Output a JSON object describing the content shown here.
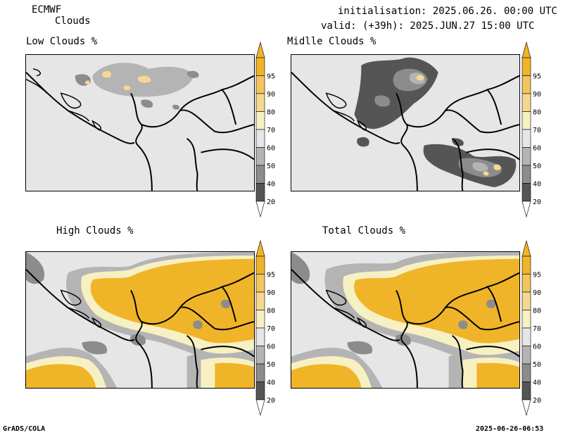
{
  "header": {
    "model": "ECMWF",
    "field": "Clouds",
    "init_label": "initialisation: 2025.06.26. 00:00 UTC",
    "valid_label": "valid: (+39h): 2025.JUN.27 15:00 UTC"
  },
  "panels": [
    {
      "title": "Low Clouds %"
    },
    {
      "title": "Midlle Clouds %"
    },
    {
      "title": "High Clouds %"
    },
    {
      "title": "Total Clouds %"
    }
  ],
  "colorbar": {
    "labels": [
      "95",
      "90",
      "80",
      "70",
      "60",
      "50",
      "40",
      "20"
    ],
    "colors": [
      "#f0b428",
      "#f2c65e",
      "#f4d890",
      "#f7f0c2",
      "#e6e6e6",
      "#b4b4b4",
      "#8c8c8c",
      "#555555"
    ]
  },
  "footer": {
    "left": "GrADS/COLA",
    "right": "2025-06-26-06:53"
  }
}
